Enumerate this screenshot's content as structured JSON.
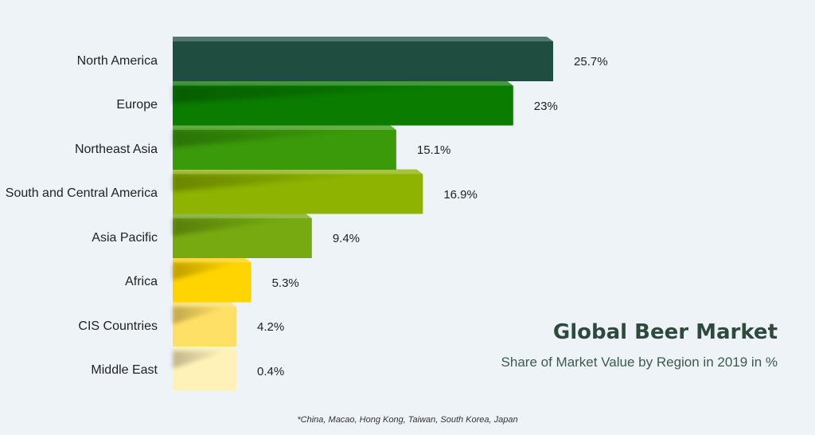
{
  "title": "Global Beer Market",
  "subtitle": "Share of Market Value by Region in 2019 in %",
  "footnote": "*China, Macao, Hong Kong, Taiwan, South Korea, Japan",
  "chart_data": {
    "type": "bar",
    "orientation": "horizontal",
    "title": "Global Beer Market",
    "subtitle": "Share of Market Value by Region in 2019 in %",
    "categories": [
      "North America",
      "Europe",
      "Northeast Asia",
      "South and Central America",
      "Asia Pacific",
      "Africa",
      "CIS Countries",
      "Middle East"
    ],
    "values": [
      25.7,
      23,
      15.1,
      16.9,
      9.4,
      5.3,
      4.2,
      0.4
    ],
    "value_labels": [
      "25.7%",
      "23%",
      "15.1%",
      "16.9%",
      "9.4%",
      "5.3%",
      "4.2%",
      "0.4%"
    ],
    "colors": [
      "#1f4d3f",
      "#0a7c00",
      "#3a9a0a",
      "#8eb300",
      "#76aa10",
      "#ffd400",
      "#ffe066",
      "#fff2b8"
    ],
    "grid": false,
    "legend": "none"
  }
}
